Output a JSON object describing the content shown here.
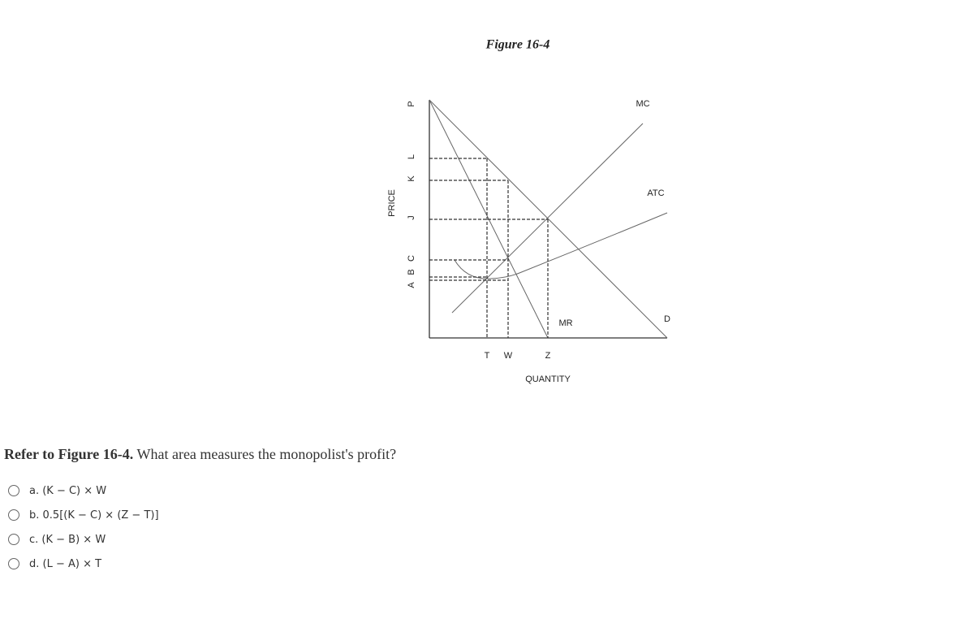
{
  "figure": {
    "title": "Figure 16-4",
    "y_axis_label": "PRICE",
    "x_axis_label": "QUANTITY",
    "price_labels": [
      "P",
      "L",
      "K",
      "J",
      "C",
      "B",
      "A"
    ],
    "quantity_labels": [
      "T",
      "W",
      "Z"
    ],
    "curve_labels": {
      "mc": "MC",
      "atc": "ATC",
      "demand": "D",
      "mr": "MR"
    }
  },
  "question": {
    "lead": "Refer to Figure 16-4.",
    "text": "What area measures the monopolist's profit?",
    "options": [
      "a. (K − C) × W",
      "b. 0.5[(K − C) × (Z − T)]",
      "c. (K − B) × W",
      "d. (L − A) × T"
    ]
  }
}
